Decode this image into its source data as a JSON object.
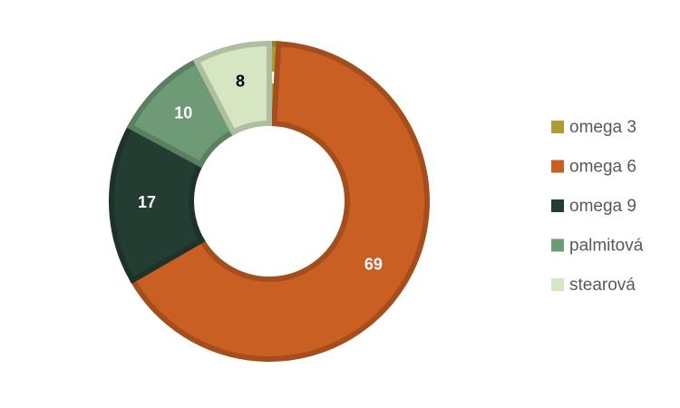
{
  "chart_data": {
    "type": "donut",
    "categories": [
      "omega 3",
      "omega 6",
      "omega 9",
      "palmitová",
      "stearová"
    ],
    "values": [
      1,
      69,
      17,
      10,
      8
    ],
    "colors": [
      "#b09b32",
      "#c95f23",
      "#243d32",
      "#6e9b76",
      "#d6e6c3"
    ],
    "legend": "right"
  }
}
